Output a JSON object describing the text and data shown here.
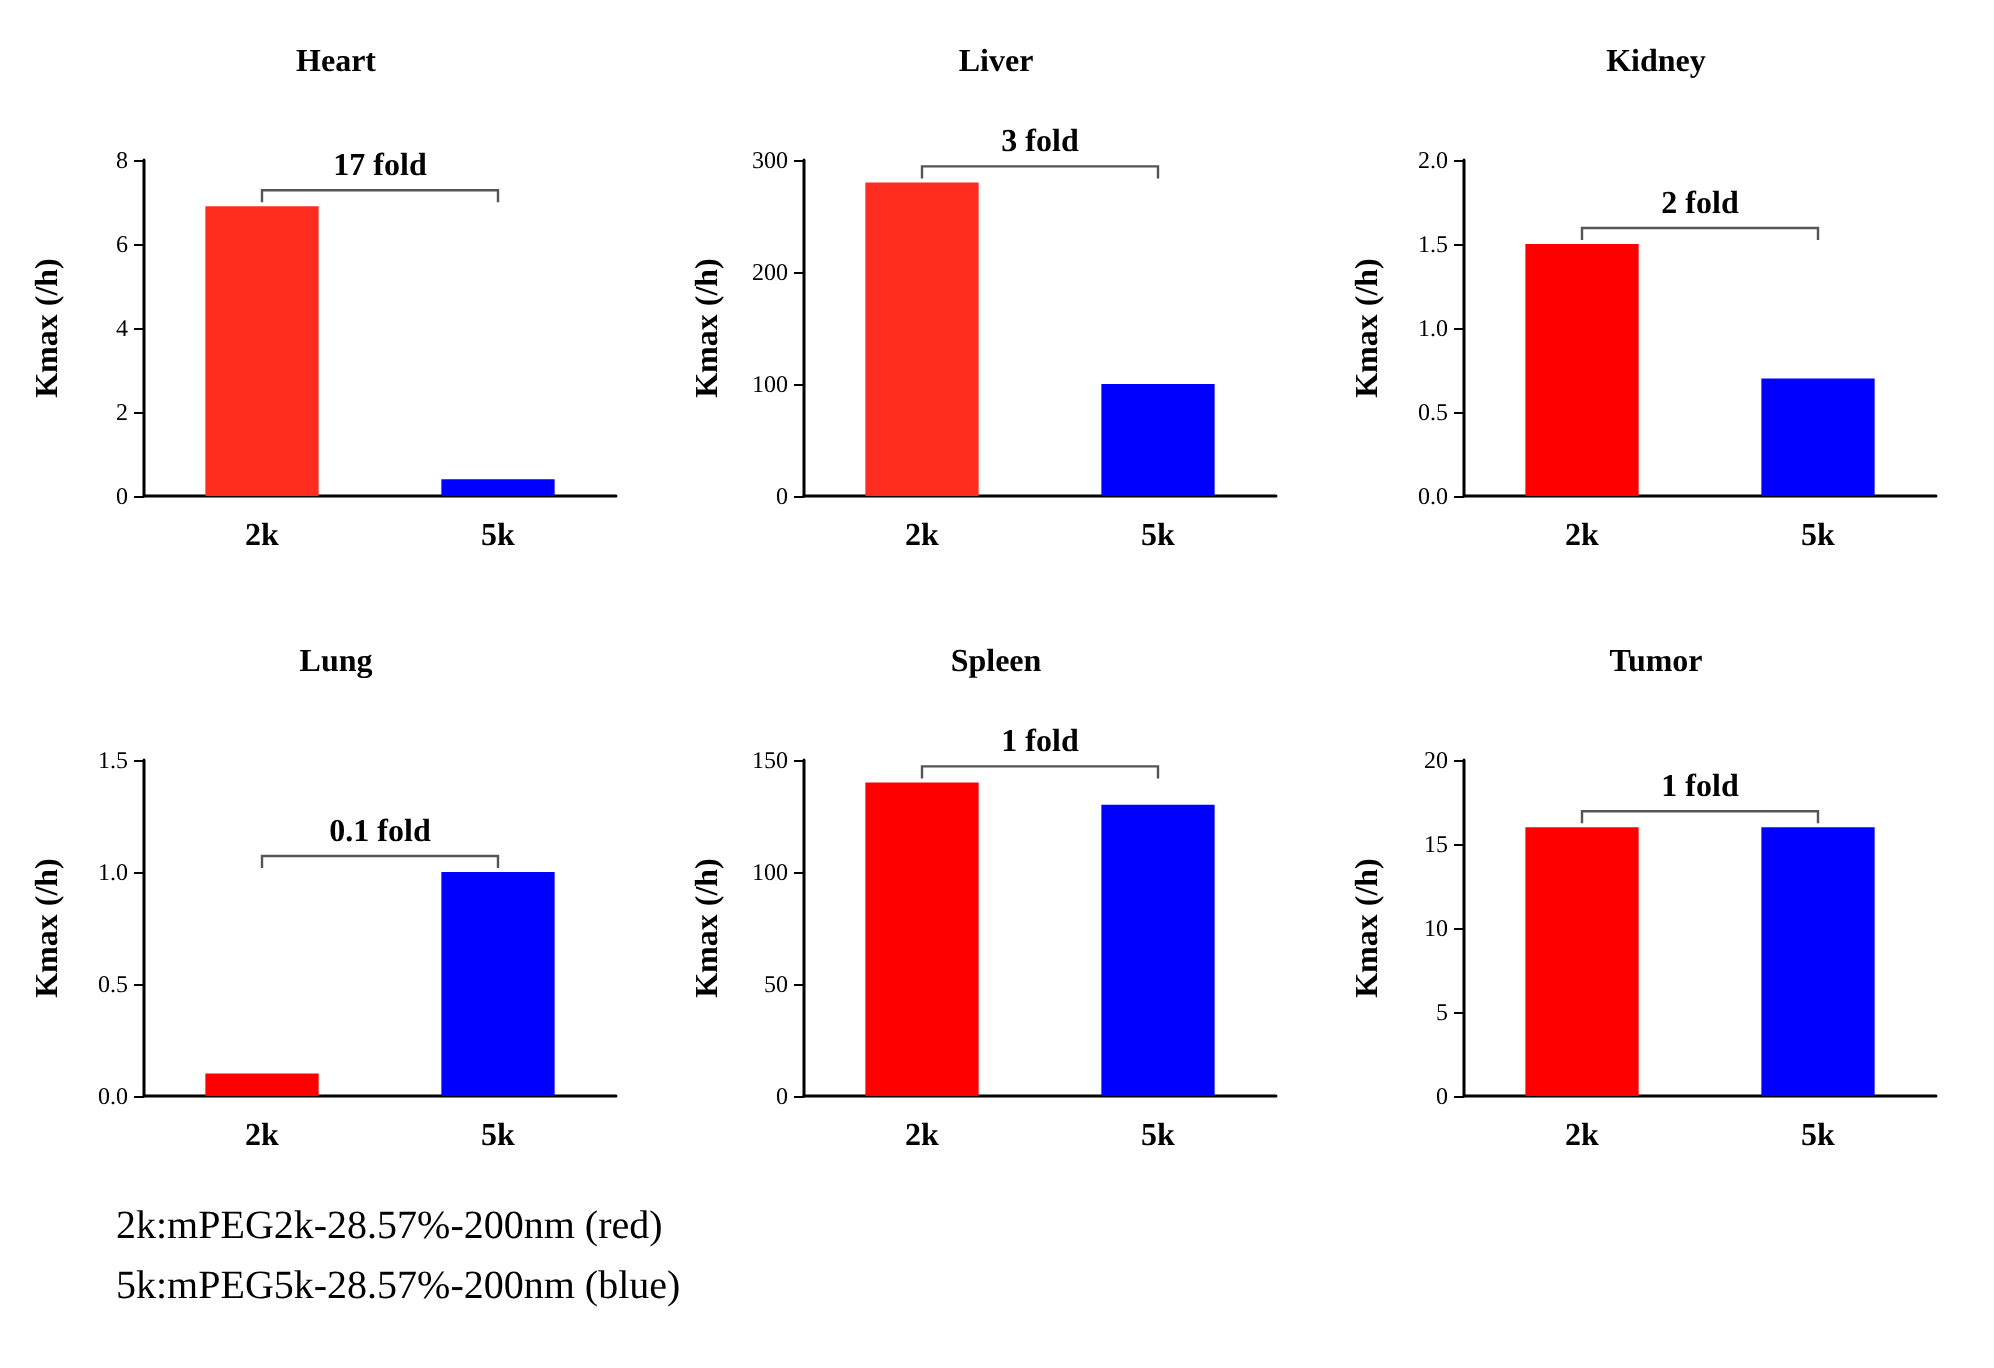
{
  "chart_data": [
    {
      "type": "bar",
      "title": "Heart",
      "ylabel": "Kmax (/h)",
      "categories": [
        "2k",
        "5k"
      ],
      "values": [
        6.9,
        0.4
      ],
      "colors": [
        "#ff2d20",
        "#0000ff"
      ],
      "ylim": [
        0,
        8
      ],
      "yticks": [
        0,
        2,
        4,
        6,
        8
      ],
      "annotations": [
        "17 fold"
      ]
    },
    {
      "type": "bar",
      "title": "Liver",
      "ylabel": "Kmax (/h)",
      "categories": [
        "2k",
        "5k"
      ],
      "values": [
        280,
        100
      ],
      "colors": [
        "#ff2d20",
        "#0000ff"
      ],
      "ylim": [
        0,
        300
      ],
      "yticks": [
        0,
        100,
        200,
        300
      ],
      "annotations": [
        "3 fold"
      ]
    },
    {
      "type": "bar",
      "title": "Kidney",
      "ylabel": "Kmax (/h)",
      "categories": [
        "2k",
        "5k"
      ],
      "values": [
        1.5,
        0.7
      ],
      "colors": [
        "#ff0000",
        "#0000ff"
      ],
      "ylim": [
        0,
        2
      ],
      "yticks": [
        {
          "value": 0,
          "label": "0.0"
        },
        {
          "value": 0.5,
          "label": "0.5"
        },
        {
          "value": 1,
          "label": "1.0"
        },
        {
          "value": 1.5,
          "label": "1.5"
        },
        {
          "value": 2,
          "label": "2.0"
        }
      ],
      "annotations": [
        "2 fold"
      ]
    },
    {
      "type": "bar",
      "title": "Lung",
      "ylabel": "Kmax (/h)",
      "categories": [
        "2k",
        "5k"
      ],
      "values": [
        0.1,
        1.0
      ],
      "colors": [
        "#ff0000",
        "#0000ff"
      ],
      "ylim": [
        0,
        1.5
      ],
      "yticks": [
        {
          "value": 0,
          "label": "0.0"
        },
        {
          "value": 0.5,
          "label": "0.5"
        },
        {
          "value": 1,
          "label": "1.0"
        },
        {
          "value": 1.5,
          "label": "1.5"
        }
      ],
      "annotations": [
        "0.1 fold"
      ]
    },
    {
      "type": "bar",
      "title": "Spleen",
      "ylabel": "Kmax (/h)",
      "categories": [
        "2k",
        "5k"
      ],
      "values": [
        140,
        130
      ],
      "colors": [
        "#ff0000",
        "#0000ff"
      ],
      "ylim": [
        0,
        150
      ],
      "yticks": [
        0,
        50,
        100,
        150
      ],
      "annotations": [
        "1 fold"
      ]
    },
    {
      "type": "bar",
      "title": "Tumor",
      "ylabel": "Kmax (/h)",
      "categories": [
        "2k",
        "5k"
      ],
      "values": [
        16,
        16
      ],
      "colors": [
        "#ff0000",
        "#0000ff"
      ],
      "ylim": [
        0,
        20
      ],
      "yticks": [
        0,
        5,
        10,
        15,
        20
      ],
      "annotations": [
        "1 fold"
      ]
    },
    {
      "type": "other",
      "annotations": [
        "2k:mPEG2k-28.57%-200nm (red)",
        "5k:mPEG5k-28.57%-200nm (blue)"
      ]
    }
  ]
}
